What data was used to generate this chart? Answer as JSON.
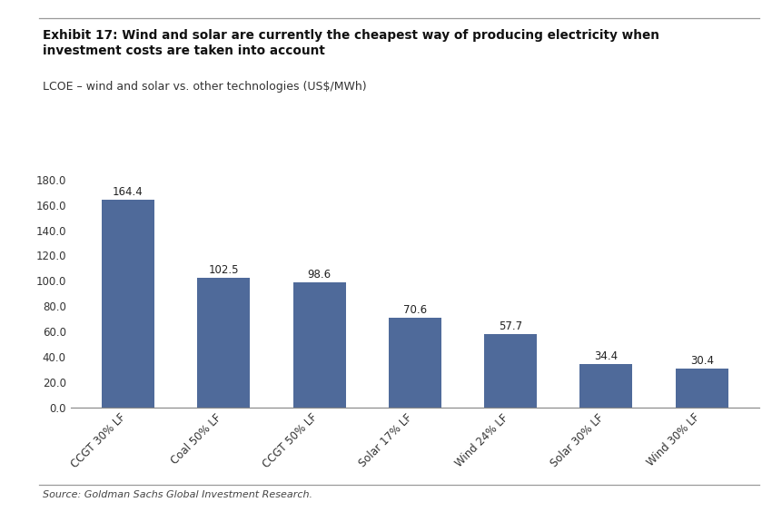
{
  "categories": [
    "CCGT 30% LF",
    "Coal 50% LF",
    "CCGT 50% LF",
    "Solar 17% LF",
    "Wind 24% LF",
    "Solar 30% LF",
    "Wind 30% LF"
  ],
  "values": [
    164.4,
    102.5,
    98.6,
    70.6,
    57.7,
    34.4,
    30.4
  ],
  "bar_color": "#4F6A9A",
  "title_bold": "Exhibit 17: Wind and solar are currently the cheapest way of producing electricity when\ninvestment costs are taken into account",
  "subtitle": "LCOE – wind and solar vs. other technologies (US$/MWh)",
  "source": "Source: Goldman Sachs Global Investment Research.",
  "ylim": [
    0,
    190
  ],
  "yticks": [
    0.0,
    20.0,
    40.0,
    60.0,
    80.0,
    100.0,
    120.0,
    140.0,
    160.0,
    180.0
  ],
  "background_color": "#FFFFFF",
  "title_fontsize": 9.8,
  "subtitle_fontsize": 9.0,
  "label_fontsize": 8.5,
  "tick_fontsize": 8.5,
  "source_fontsize": 8.0
}
